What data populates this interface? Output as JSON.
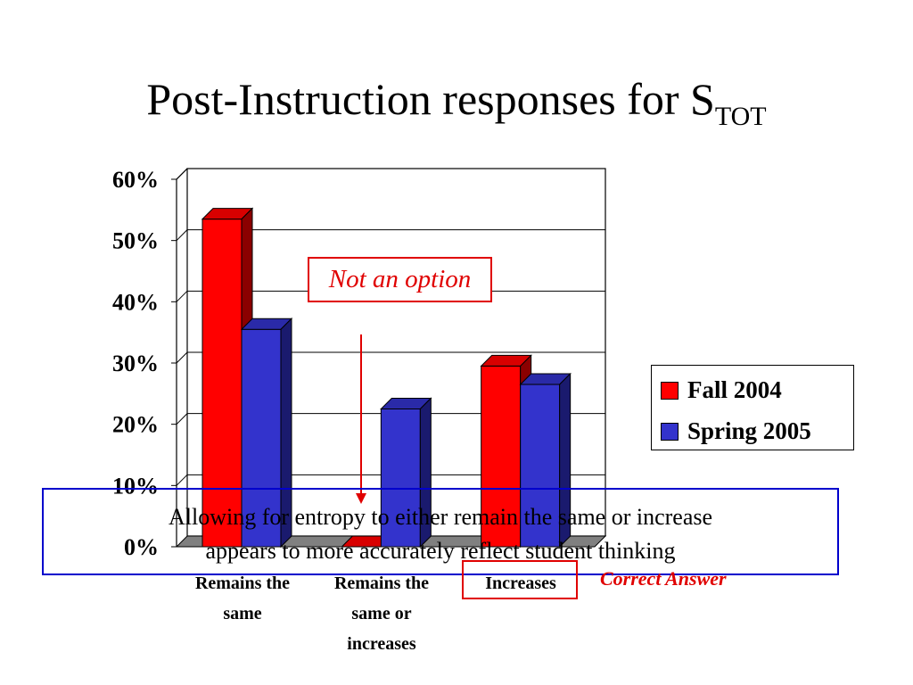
{
  "title": {
    "main": "Post-Instruction responses for S",
    "subscript": "TOT"
  },
  "annotations": {
    "note": "Not an option",
    "correct": "Correct Answer",
    "caption_line1": "Allowing for entropy to either remain the same or increase",
    "caption_line2": "appears to more accurately reflect student thinking"
  },
  "colors": {
    "fall": "#ff0000",
    "spring": "#3333cc",
    "annotation": "#e00000",
    "caption_border": "#0000cc"
  },
  "chart_data": {
    "type": "bar",
    "categories": [
      "Remains the same",
      "Remains the same or increases",
      "Increases"
    ],
    "category_lines": [
      [
        "Remains the",
        "same"
      ],
      [
        "Remains the",
        "same or",
        "increases"
      ],
      [
        "Increases"
      ]
    ],
    "series": [
      {
        "name": "Fall 2004",
        "values": [
          53.5,
          0,
          29.5
        ]
      },
      {
        "name": "Spring 2005",
        "values": [
          35.5,
          22.5,
          26.5
        ]
      }
    ],
    "yticks": [
      "0%",
      "10%",
      "20%",
      "30%",
      "40%",
      "50%",
      "60%"
    ],
    "ylim": [
      0,
      60
    ],
    "legend": "right",
    "grid": true,
    "style": "3d"
  }
}
